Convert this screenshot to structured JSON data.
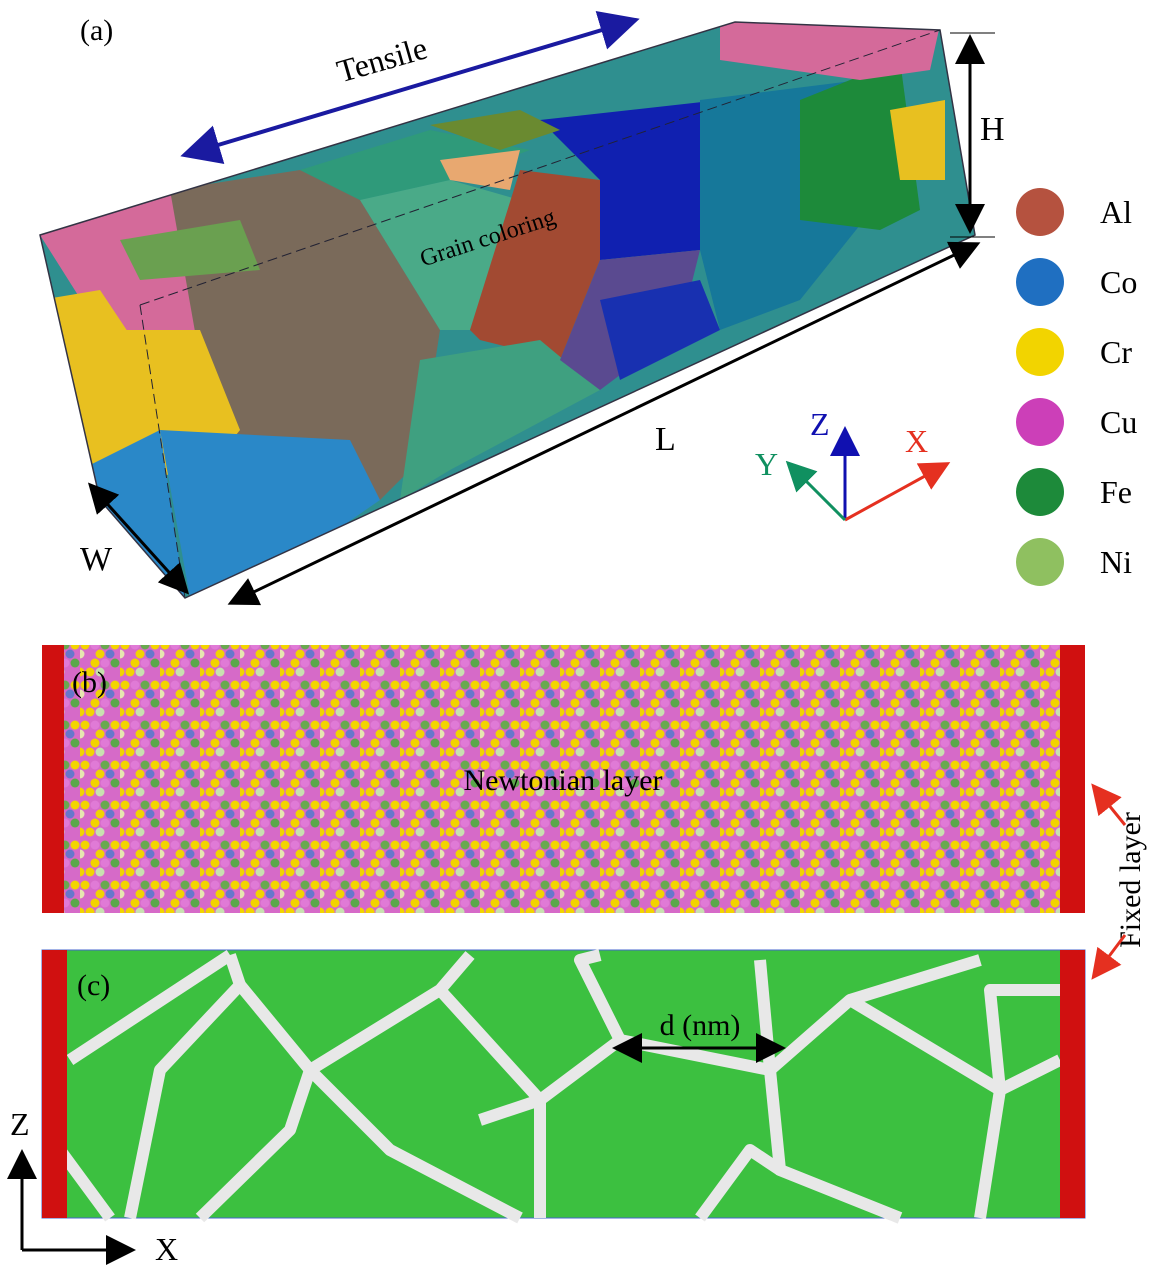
{
  "panel_a": {
    "label": "(a)",
    "annotations": {
      "tensile": "Tensile",
      "grain_coloring": "Grain coloring",
      "h": "H",
      "l": "L",
      "w": "W"
    },
    "axes": {
      "z": "Z",
      "y": "Y",
      "x": "X"
    },
    "legend": [
      {
        "label": "Al",
        "color": "#b5523f"
      },
      {
        "label": "Co",
        "color": "#1f6fc1"
      },
      {
        "label": "Cr",
        "color": "#f2d400"
      },
      {
        "label": "Cu",
        "color": "#cc3fb8"
      },
      {
        "label": "Fe",
        "color": "#1d8a3a"
      },
      {
        "label": "Ni",
        "color": "#8fc060"
      }
    ]
  },
  "panel_b": {
    "label": "(b)",
    "annotation": "Newtonian layer"
  },
  "panel_c": {
    "label": "(c)",
    "annotation": "d (nm)",
    "axes": {
      "z": "Z",
      "x": "X"
    }
  },
  "fixed_layer": "Fixed layer"
}
